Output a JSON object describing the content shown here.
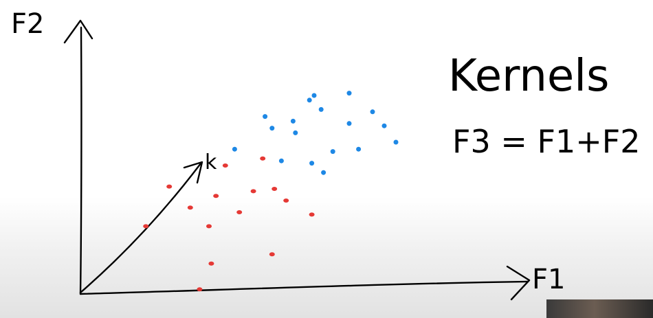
{
  "title": "Kernels",
  "formula": "F3 = F1+F2",
  "axes": {
    "x_label": "F1",
    "y_label": "F2",
    "vector_label": "k"
  },
  "colors": {
    "ink": "#000000",
    "class_red": "#e53935",
    "class_blue": "#1e88e5"
  },
  "points": {
    "red": [
      {
        "f1": 0.62,
        "f2": 0.55
      },
      {
        "f1": 0.38,
        "f2": 0.46
      },
      {
        "f1": 0.58,
        "f2": 0.42
      },
      {
        "f1": 0.74,
        "f2": 0.44
      },
      {
        "f1": 0.83,
        "f2": 0.45
      },
      {
        "f1": 0.88,
        "f2": 0.4
      },
      {
        "f1": 0.68,
        "f2": 0.35
      },
      {
        "f1": 0.99,
        "f2": 0.34
      },
      {
        "f1": 0.78,
        "f2": 0.58
      },
      {
        "f1": 0.47,
        "f2": 0.37
      },
      {
        "f1": 0.56,
        "f2": 0.13
      },
      {
        "f1": 0.28,
        "f2": 0.29
      },
      {
        "f1": 0.55,
        "f2": 0.29
      },
      {
        "f1": 0.51,
        "f2": 0.02
      },
      {
        "f1": 0.82,
        "f2": 0.17
      }
    ],
    "blue": [
      {
        "f1": 0.79,
        "f2": 0.76
      },
      {
        "f1": 0.98,
        "f2": 0.83
      },
      {
        "f1": 1.0,
        "f2": 0.85
      },
      {
        "f1": 1.15,
        "f2": 0.86
      },
      {
        "f1": 1.03,
        "f2": 0.79
      },
      {
        "f1": 1.25,
        "f2": 0.78
      },
      {
        "f1": 0.91,
        "f2": 0.74
      },
      {
        "f1": 0.82,
        "f2": 0.71
      },
      {
        "f1": 1.08,
        "f2": 0.61
      },
      {
        "f1": 1.35,
        "f2": 0.65
      },
      {
        "f1": 0.66,
        "f2": 0.62
      },
      {
        "f1": 0.92,
        "f2": 0.69
      },
      {
        "f1": 0.86,
        "f2": 0.57
      },
      {
        "f1": 0.99,
        "f2": 0.56
      },
      {
        "f1": 1.04,
        "f2": 0.52
      },
      {
        "f1": 1.15,
        "f2": 0.73
      },
      {
        "f1": 1.19,
        "f2": 0.62
      },
      {
        "f1": 1.3,
        "f2": 0.72
      }
    ]
  }
}
